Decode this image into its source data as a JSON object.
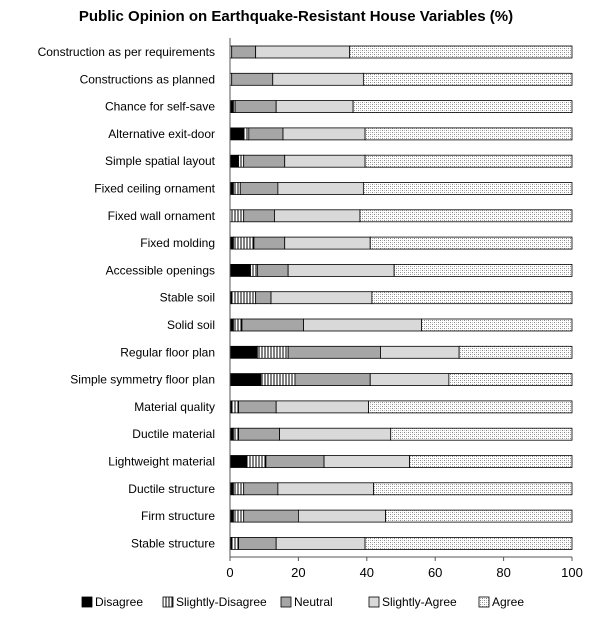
{
  "chart_data": {
    "type": "bar",
    "orientation": "horizontal",
    "stacked": true,
    "title": "Public Opinion on Earthquake-Resistant House Variables (%)",
    "xlim": [
      0,
      100
    ],
    "xticks": [
      0,
      20,
      40,
      60,
      80,
      100
    ],
    "grid": false,
    "legend_position": "bottom",
    "categories": [
      "Construction as per requirements",
      "Constructions as planned",
      "Chance for self-save",
      "Alternative exit-door",
      "Simple spatial layout",
      "Fixed  ceiling ornament",
      "Fixed wall ornament",
      "Fixed molding",
      "Accessible openings",
      "Stable soil",
      "Solid soil",
      "Regular floor plan",
      "Simple symmetry floor plan",
      "Material quality",
      "Ductile material",
      "Lightweight material",
      "Ductile structure",
      "Firm structure",
      "Stable structure"
    ],
    "series": [
      {
        "name": "Disagree",
        "pattern": "solid-black",
        "values": [
          0,
          0,
          1,
          4,
          2.5,
          1,
          0,
          1,
          6,
          0.5,
          1,
          8,
          9,
          0.5,
          1,
          5,
          1,
          1,
          0.5
        ]
      },
      {
        "name": "Slightly-Disagree",
        "pattern": "vertical-lines",
        "values": [
          0.5,
          0.5,
          0.5,
          1.5,
          1.5,
          2,
          4,
          6,
          2,
          7,
          2.5,
          9,
          10,
          2,
          1.5,
          5.5,
          3,
          3,
          2
        ]
      },
      {
        "name": "Neutral",
        "pattern": "gray",
        "values": [
          7,
          12,
          12,
          10,
          12,
          11,
          9,
          9,
          9,
          4.5,
          18,
          27,
          22,
          11,
          12,
          17,
          10,
          16,
          11
        ]
      },
      {
        "name": "Slightly-Agree",
        "pattern": "light-gray",
        "values": [
          27.5,
          26.5,
          22.5,
          24,
          23.5,
          25,
          25,
          25,
          31,
          29.5,
          34.5,
          23,
          23,
          27,
          32.5,
          25,
          28,
          25.5,
          26
        ]
      },
      {
        "name": "Agree",
        "pattern": "dots",
        "values": [
          65,
          61,
          64,
          60.5,
          60.5,
          61,
          62,
          59,
          52,
          58.5,
          44,
          33,
          36,
          59.5,
          53,
          47.5,
          58,
          54.5,
          60.5
        ]
      }
    ]
  }
}
